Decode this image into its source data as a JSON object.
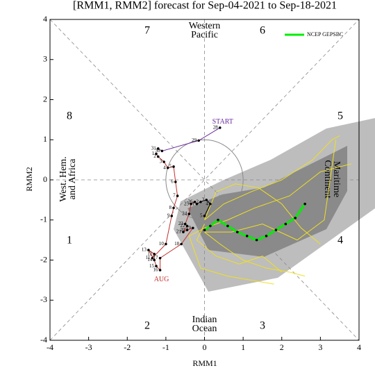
{
  "chart_data": {
    "type": "phase",
    "title": "[RMM1, RMM2] forecast for Sep-04-2021 to Sep-18-2021",
    "x_label": "RMM1",
    "y_label": "RMM2",
    "xlim": [
      -4,
      4
    ],
    "ylim": [
      -4,
      4
    ],
    "xticks": [
      -4,
      -3,
      -2,
      -1,
      0,
      1,
      2,
      3,
      4
    ],
    "yticks": [
      -4,
      -3,
      -2,
      -1,
      0,
      1,
      2,
      3,
      4
    ],
    "phases": [
      "1",
      "2",
      "3",
      "4",
      "5",
      "6",
      "7",
      "8"
    ],
    "regions": {
      "top": [
        "Western",
        "Pacific"
      ],
      "bottom": [
        "Indian",
        "Ocean"
      ],
      "left": [
        "West. Hem.",
        "and Africa"
      ],
      "right": [
        "Maritime",
        "Continent"
      ]
    },
    "annotations": {
      "start": "START",
      "aug": "AUG"
    },
    "observed": [
      {
        "color": "#6a2ca0",
        "x": [
          0.4,
          -0.15,
          -1.1,
          -1.2
        ],
        "y": [
          1.3,
          0.98,
          0.72,
          0.78
        ],
        "day_labels": [
          "28",
          "29",
          "30",
          "31"
        ]
      },
      {
        "color": "#c0302a",
        "x": [
          -1.25,
          -1.2,
          -1.05,
          -0.95,
          -0.8,
          -0.75,
          -0.7,
          -0.8,
          -0.85,
          -1.0,
          -1.35,
          -1.3,
          -1.45,
          -1.3,
          -1.25,
          -1.15,
          -1.15,
          -0.6,
          -0.3,
          -0.45,
          -0.55,
          -0.45,
          -0.5,
          -0.4,
          -0.35,
          -0.25
        ],
        "y": [
          0.65,
          0.58,
          0.45,
          0.3,
          0.33,
          -0.05,
          -0.4,
          -0.7,
          -0.9,
          -1.6,
          -1.95,
          -1.85,
          -1.75,
          -2.0,
          -2.15,
          -2.25,
          -1.95,
          -1.6,
          -1.2,
          -1.25,
          -1.3,
          -1.15,
          -1.1,
          -0.85,
          -0.6,
          -0.55
        ],
        "day_labels": [
          "1",
          "2",
          "3",
          "4",
          "5",
          "6",
          "7",
          "8",
          "9",
          "10",
          "11",
          "12",
          "13",
          "14",
          "15",
          "16",
          "17",
          "18",
          "19",
          "20",
          "21",
          "22",
          "23",
          "24",
          "25",
          "26"
        ]
      },
      {
        "color": "#000000",
        "x": [
          -0.2,
          -0.1,
          0.05,
          0.15,
          0.0
        ],
        "y": [
          -0.6,
          -0.55,
          -0.5,
          -0.6,
          -0.9
        ],
        "day_labels": [
          "1",
          "2",
          "3",
          "4",
          "5"
        ]
      }
    ],
    "forecast": {
      "name": "NCEP GEPSBC",
      "color": "#00ee00",
      "x": [
        0.0,
        0.15,
        0.35,
        0.6,
        0.85,
        1.1,
        1.35,
        1.6,
        1.85,
        2.1,
        2.35,
        2.6
      ],
      "y": [
        -1.25,
        -1.15,
        -1.0,
        -1.15,
        -1.3,
        -1.4,
        -1.5,
        -1.4,
        -1.25,
        -1.1,
        -0.95,
        -0.6
      ]
    },
    "member_color": "#f0e020",
    "members": [
      {
        "x": [
          0.0,
          0.5,
          1.2,
          2.0,
          2.8,
          3.3,
          3.5
        ],
        "y": [
          -1.0,
          -0.6,
          -0.3,
          0.0,
          0.5,
          1.0,
          1.1
        ]
      },
      {
        "x": [
          0.0,
          0.6,
          1.3,
          2.2,
          3.0,
          3.8
        ],
        "y": [
          -1.2,
          -1.0,
          -0.7,
          -0.4,
          0.2,
          0.4
        ]
      },
      {
        "x": [
          0.0,
          0.4,
          1.0,
          1.6,
          2.2,
          2.6
        ],
        "y": [
          -1.3,
          -1.6,
          -2.0,
          -2.2,
          -2.3,
          -2.4
        ]
      },
      {
        "x": [
          0.0,
          -0.2,
          0.3,
          0.9,
          1.5,
          2.0
        ],
        "y": [
          -1.1,
          -1.5,
          -1.9,
          -2.1,
          -1.9,
          -2.3
        ]
      },
      {
        "x": [
          0.0,
          0.7,
          1.5,
          2.4,
          3.1,
          3.4
        ],
        "y": [
          -1.3,
          -1.3,
          -1.1,
          -1.5,
          -1.0,
          1.0
        ]
      },
      {
        "x": [
          0.0,
          0.3,
          0.8,
          1.4,
          2.0,
          2.5,
          3.0
        ],
        "y": [
          -1.0,
          -0.3,
          -0.1,
          -0.2,
          -0.6,
          -1.2,
          -1.6
        ]
      },
      {
        "x": [
          0.0,
          -0.4,
          -0.1,
          0.6,
          1.2,
          1.8
        ],
        "y": [
          -1.2,
          -1.4,
          -2.2,
          -2.4,
          -2.5,
          -2.6
        ]
      }
    ]
  }
}
